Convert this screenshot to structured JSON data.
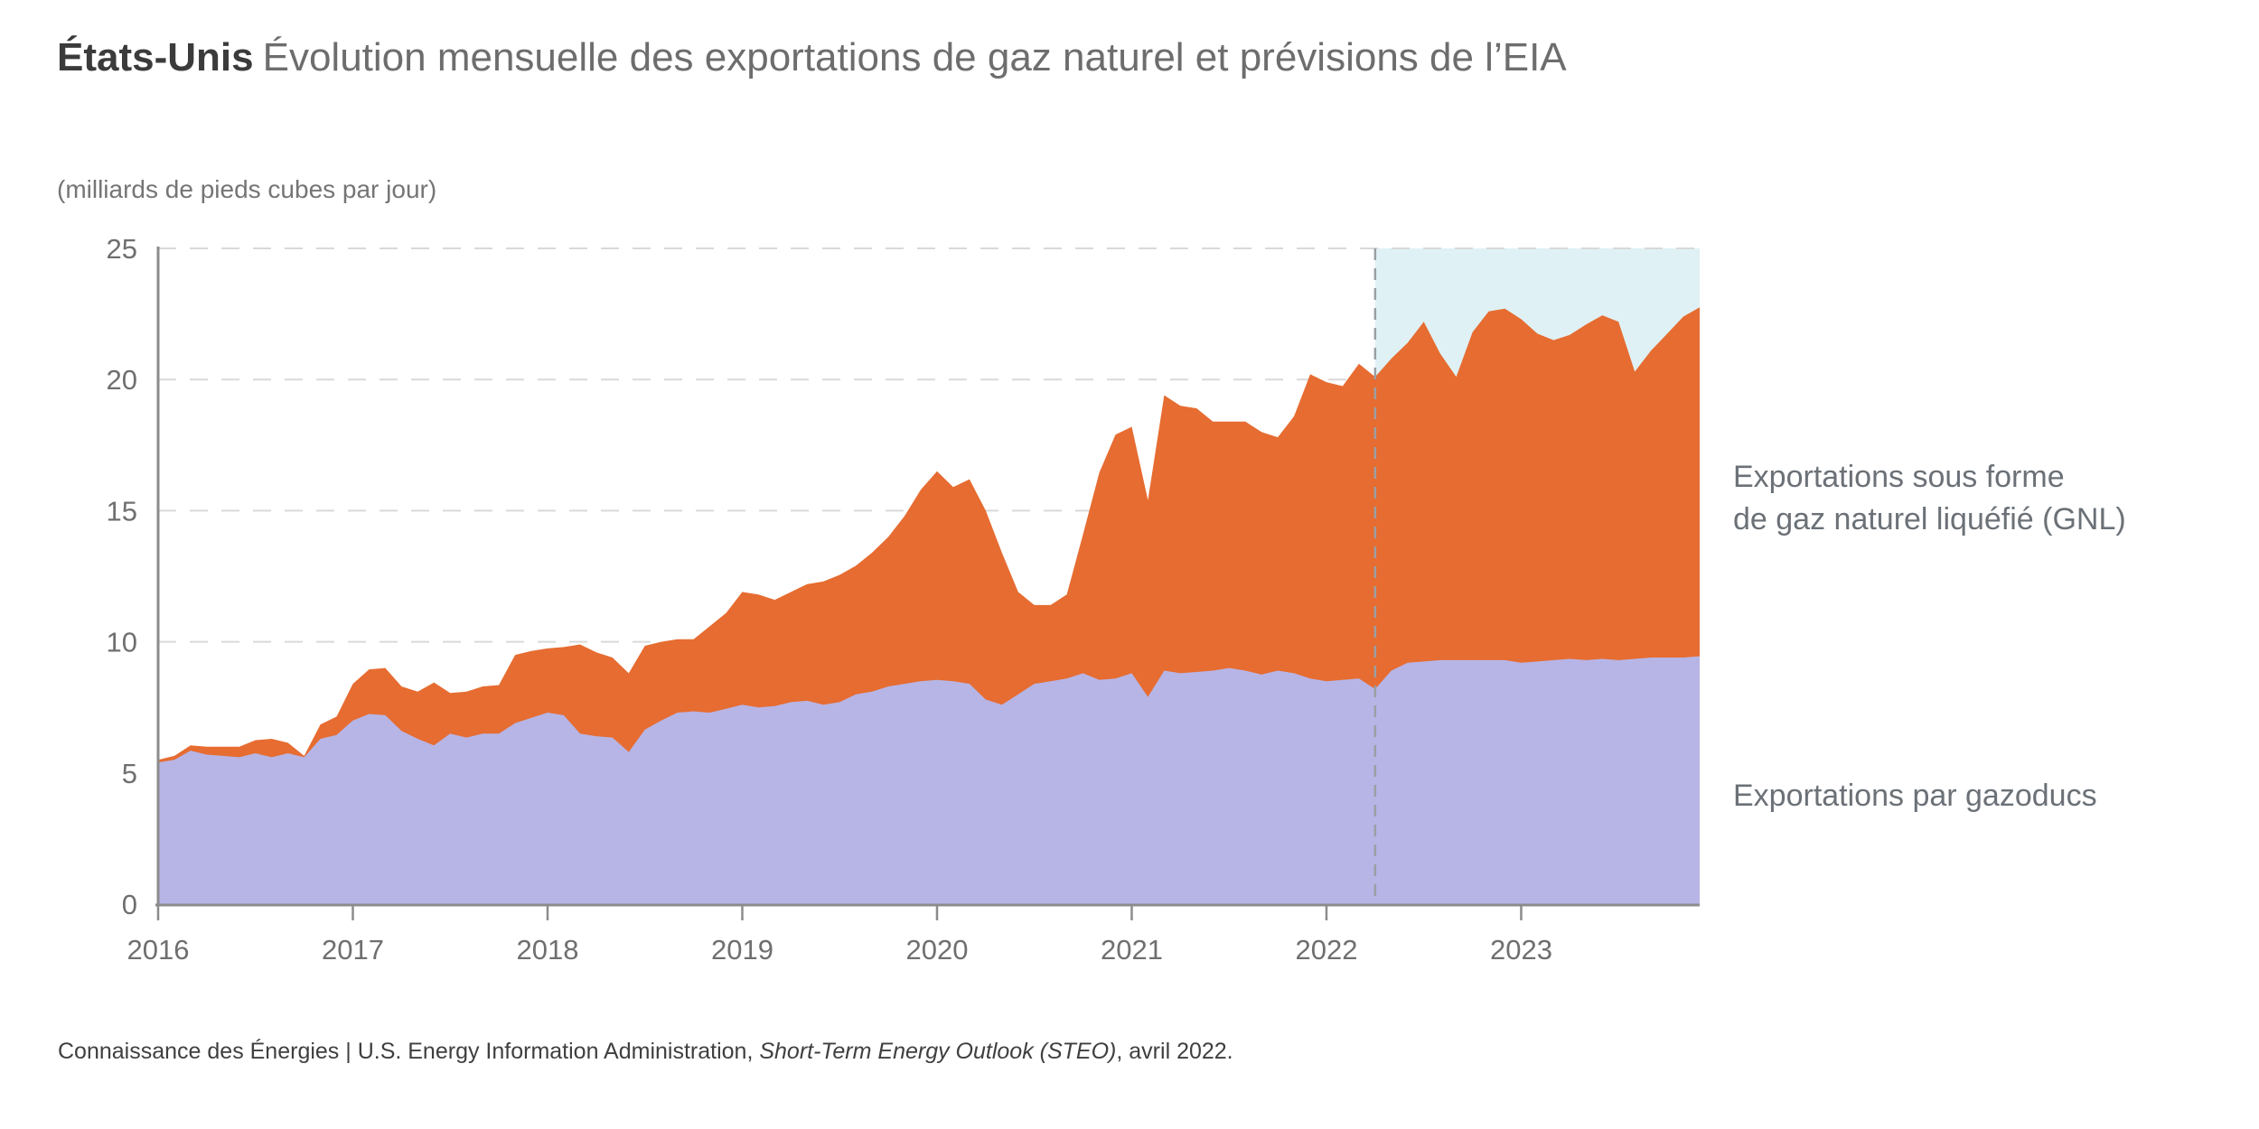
{
  "title": {
    "region": "États-Unis",
    "text": "Évolution mensuelle des exportations de gaz naturel et prévisions de l’EIA"
  },
  "subtitle": "(milliards de pieds cubes par jour)",
  "annotations": {
    "lng_line1": "Exportations sous forme",
    "lng_line2": "de gaz naturel liquéfié (GNL)",
    "pipeline": "Exportations par gazoducs"
  },
  "footer": {
    "prefix": "Connaissance des Énergies | U.S. Energy Information Administration, ",
    "italic": "Short-Term Energy Outlook (STEO)",
    "suffix": ", avril 2022."
  },
  "chart_data": {
    "type": "area",
    "stacked": true,
    "title": "États-Unis — Évolution mensuelle des exportations de gaz naturel et prévisions de l’EIA",
    "ylabel": "milliards de pieds cubes par jour",
    "x_start": "2016-01",
    "x_end": "2023-12",
    "frequency": "monthly",
    "months_count": 96,
    "x_tick_labels": [
      "2016",
      "2017",
      "2018",
      "2019",
      "2020",
      "2021",
      "2022",
      "2023"
    ],
    "x_tick_month_indices": [
      0,
      12,
      24,
      36,
      48,
      60,
      72,
      84
    ],
    "y_ticks": [
      0,
      5,
      10,
      15,
      20,
      25
    ],
    "ylim": [
      0,
      25
    ],
    "grid": "dashed-horizontal",
    "legend_position": "right-of-plot",
    "forecast_start_index": 75,
    "series": [
      {
        "name": "Exportations par gazoducs",
        "color": "#b7b5e6",
        "values": [
          5.4,
          5.5,
          5.85,
          5.7,
          5.65,
          5.6,
          5.75,
          5.6,
          5.75,
          5.6,
          6.3,
          6.45,
          7.0,
          7.25,
          7.2,
          6.6,
          6.3,
          6.05,
          6.5,
          6.35,
          6.5,
          6.5,
          6.9,
          7.1,
          7.3,
          7.2,
          6.5,
          6.4,
          6.35,
          5.8,
          6.65,
          7.0,
          7.3,
          7.35,
          7.3,
          7.45,
          7.6,
          7.5,
          7.55,
          7.7,
          7.75,
          7.6,
          7.7,
          8.0,
          8.1,
          8.3,
          8.4,
          8.5,
          8.55,
          8.5,
          8.4,
          7.8,
          7.6,
          8.0,
          8.4,
          8.5,
          8.6,
          8.8,
          8.55,
          8.6,
          8.8,
          7.9,
          8.9,
          8.8,
          8.85,
          8.9,
          9.0,
          8.9,
          8.75,
          8.9,
          8.8,
          8.6,
          8.5,
          8.55,
          8.6,
          8.2,
          8.9,
          9.2,
          9.25,
          9.3,
          9.3,
          9.3,
          9.3,
          9.3,
          9.2,
          9.25,
          9.3,
          9.35,
          9.3,
          9.35,
          9.3,
          9.35,
          9.4,
          9.4,
          9.4,
          9.45
        ]
      },
      {
        "name": "Exportations sous forme de gaz naturel liquéfié (GNL)",
        "color": "#e66c31",
        "values": [
          0.1,
          0.15,
          0.2,
          0.3,
          0.35,
          0.4,
          0.5,
          0.7,
          0.4,
          0.05,
          0.55,
          0.7,
          1.4,
          1.7,
          1.8,
          1.7,
          1.8,
          2.4,
          1.55,
          1.75,
          1.8,
          1.85,
          2.6,
          2.55,
          2.45,
          2.6,
          3.4,
          3.2,
          3.05,
          3.0,
          3.2,
          3.0,
          2.8,
          2.75,
          3.3,
          3.65,
          4.3,
          4.3,
          4.05,
          4.2,
          4.45,
          4.7,
          4.85,
          4.9,
          5.3,
          5.7,
          6.4,
          7.3,
          7.95,
          7.4,
          7.8,
          7.2,
          5.8,
          3.9,
          3.0,
          2.9,
          3.2,
          5.3,
          7.9,
          9.3,
          9.4,
          7.5,
          10.5,
          10.2,
          10.05,
          9.5,
          9.4,
          9.5,
          9.25,
          8.9,
          9.8,
          11.6,
          11.4,
          11.2,
          12.0,
          11.9,
          11.9,
          12.2,
          12.95,
          11.7,
          10.8,
          12.5,
          13.3,
          13.4,
          13.1,
          12.5,
          12.2,
          12.35,
          12.8,
          13.1,
          12.9,
          10.95,
          11.7,
          12.35,
          13.0,
          13.3
        ]
      }
    ],
    "colors": {
      "pipeline_area": "#b7b5e6",
      "lng_area": "#e66c31",
      "forecast_background": "#dff1f4",
      "gridline": "#d9d9d9",
      "axis": "#8c8c8c",
      "forecast_divider": "#9b9fa3",
      "tick_text": "#6f6f6f"
    }
  }
}
